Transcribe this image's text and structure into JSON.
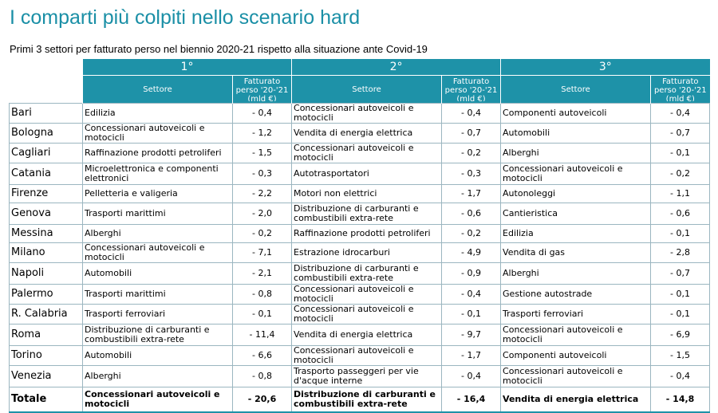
{
  "title": "I comparti più colpiti nello scenario hard",
  "subtitle": "Primi 3 settori per fatturato perso nel biennio 2020-21 rispetto alla situazione ante Covid-19",
  "ranks": [
    "1°",
    "2°",
    "3°"
  ],
  "headers": {
    "sector": "Settore",
    "revenue": "Fatturato perso '20-'21 (mld €)"
  },
  "rows": [
    {
      "city": "Bari",
      "s1": "Edilizia",
      "v1": "- 0,4",
      "s2": "Concessionari autoveicoli e motocicli",
      "v2": "- 0,4",
      "s3": "Componenti autoveicoli",
      "v3": "- 0,4"
    },
    {
      "city": "Bologna",
      "s1": "Concessionari autoveicoli e motocicli",
      "v1": "- 1,2",
      "s2": "Vendita di energia elettrica",
      "v2": "- 0,7",
      "s3": "Automobili",
      "v3": "- 0,7"
    },
    {
      "city": "Cagliari",
      "s1": "Raffinazione prodotti petroliferi",
      "v1": "- 1,5",
      "s2": "Concessionari autoveicoli e motocicli",
      "v2": "- 0,2",
      "s3": "Alberghi",
      "v3": "- 0,1"
    },
    {
      "city": "Catania",
      "s1": "Microelettronica e componenti elettronici",
      "v1": "- 0,3",
      "s2": "Autotrasportatori",
      "v2": "- 0,3",
      "s3": "Concessionari autoveicoli e motocicli",
      "v3": "- 0,2"
    },
    {
      "city": "Firenze",
      "s1": "Pelletteria e valigeria",
      "v1": "- 2,2",
      "s2": "Motori non elettrici",
      "v2": "- 1,7",
      "s3": "Autonoleggi",
      "v3": "- 1,1"
    },
    {
      "city": "Genova",
      "s1": "Trasporti marittimi",
      "v1": "- 2,0",
      "s2": "Distribuzione di carburanti e combustibili extra-rete",
      "v2": "- 0,6",
      "s3": "Cantieristica",
      "v3": "- 0,6"
    },
    {
      "city": "Messina",
      "s1": "Alberghi",
      "v1": "- 0,2",
      "s2": "Raffinazione prodotti petroliferi",
      "v2": "- 0,2",
      "s3": "Edilizia",
      "v3": "- 0,1"
    },
    {
      "city": "Milano",
      "s1": "Concessionari autoveicoli e motocicli",
      "v1": "- 7,1",
      "s2": "Estrazione idrocarburi",
      "v2": "- 4,9",
      "s3": "Vendita di gas",
      "v3": "- 2,8"
    },
    {
      "city": "Napoli",
      "s1": "Automobili",
      "v1": "- 2,1",
      "s2": "Distribuzione di carburanti e combustibili extra-rete",
      "v2": "- 0,9",
      "s3": "Alberghi",
      "v3": "- 0,7"
    },
    {
      "city": "Palermo",
      "s1": "Trasporti marittimi",
      "v1": "- 0,8",
      "s2": "Concessionari autoveicoli e motocicli",
      "v2": "- 0,4",
      "s3": "Gestione autostrade",
      "v3": "- 0,1"
    },
    {
      "city": "R. Calabria",
      "s1": "Trasporti ferroviari",
      "v1": "- 0,1",
      "s2": "Concessionari autoveicoli e motocicli",
      "v2": "- 0,1",
      "s3": "Trasporti ferroviari",
      "v3": "- 0,1"
    },
    {
      "city": "Roma",
      "s1": "Distribuzione di carburanti e combustibili extra-rete",
      "v1": "- 11,4",
      "s2": "Vendita di energia elettrica",
      "v2": "- 9,7",
      "s3": "Concessionari autoveicoli e motocicli",
      "v3": "- 6,9"
    },
    {
      "city": "Torino",
      "s1": "Automobili",
      "v1": "- 6,6",
      "s2": "Concessionari autoveicoli e motocicli",
      "v2": "- 1,7",
      "s3": "Componenti autoveicoli",
      "v3": "- 1,5"
    },
    {
      "city": "Venezia",
      "s1": "Alberghi",
      "v1": "- 0,8",
      "s2": "Trasporto passeggeri per vie d'acque interne",
      "v2": "- 0,4",
      "s3": "Concessionari autoveicoli e motocicli",
      "v3": "- 0,4"
    }
  ],
  "total": {
    "city": "Totale",
    "s1": "Concessionari autoveicoli e motocicli",
    "v1": "- 20,6",
    "s2": "Distribuzione di carburanti e combustibili extra-rete",
    "v2": "- 16,4",
    "s3": "Vendita di energia elettrica",
    "v3": "- 14,8"
  }
}
